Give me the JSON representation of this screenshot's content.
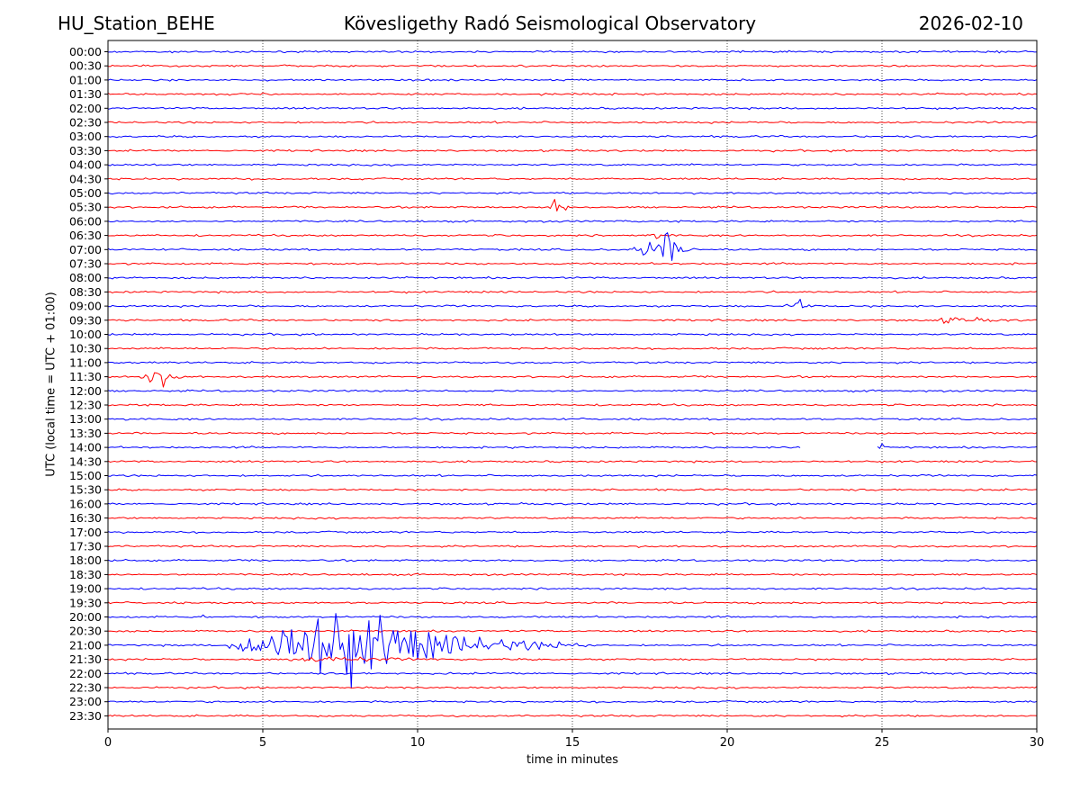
{
  "header": {
    "station": "HU_Station_BEHE",
    "observatory": "Kövesligethy Radó Seismological Observatory",
    "date": "2026-02-10"
  },
  "chart_data": {
    "type": "line",
    "title": "Kövesligethy Radó Seismological Observatory",
    "xlabel": "time in minutes",
    "ylabel": "UTC (local time = UTC + 01:00)",
    "xlim": [
      0,
      30
    ],
    "xticks": [
      0,
      5,
      10,
      15,
      20,
      25,
      30
    ],
    "x_gridlines": "dotted vertical at each x tick",
    "rows": [
      "00:00",
      "00:30",
      "01:00",
      "01:30",
      "02:00",
      "02:30",
      "03:00",
      "03:30",
      "04:00",
      "04:30",
      "05:00",
      "05:30",
      "06:00",
      "06:30",
      "07:00",
      "07:30",
      "08:00",
      "08:30",
      "09:00",
      "09:30",
      "10:00",
      "10:30",
      "11:00",
      "11:30",
      "12:00",
      "12:30",
      "13:00",
      "13:30",
      "14:00",
      "14:30",
      "15:00",
      "15:30",
      "16:00",
      "16:30",
      "17:00",
      "17:30",
      "18:00",
      "18:30",
      "19:00",
      "19:30",
      "20:00",
      "20:30",
      "21:00",
      "21:30",
      "22:00",
      "22:30",
      "23:00",
      "23:30"
    ],
    "row_colors": [
      "#0000ff",
      "#ff0000"
    ],
    "baseline_noise": 0.18,
    "events": [
      {
        "row": "05:30",
        "start": 14.2,
        "peak": 14.45,
        "end": 15.1,
        "amplitude": 1.9
      },
      {
        "row": "06:30",
        "start": 17.3,
        "peak": 17.55,
        "end": 18.4,
        "amplitude": 0.8
      },
      {
        "row": "07:00",
        "start": 16.8,
        "peak": 18.1,
        "end": 19.2,
        "amplitude": 3.2
      },
      {
        "row": "09:00",
        "start": 21.8,
        "peak": 22.35,
        "end": 23.0,
        "amplitude": 1.2
      },
      {
        "row": "09:30",
        "start": 26.5,
        "peak": 27.3,
        "end": 30.0,
        "amplitude": 0.6
      },
      {
        "row": "11:30",
        "start": 0.9,
        "peak": 1.6,
        "end": 2.6,
        "amplitude": 2.6
      },
      {
        "row": "14:00",
        "start": 24.85,
        "peak": 24.9,
        "end": 25.1,
        "amplitude": 2.1
      },
      {
        "row": "20:00",
        "start": 2.95,
        "peak": 3.05,
        "end": 3.2,
        "amplitude": 0.6
      },
      {
        "row": "21:00",
        "start": 3.7,
        "peak": 7.4,
        "end": 15.5,
        "amplitude": 9.0
      },
      {
        "row": "21:30",
        "start": 4.5,
        "peak": 7.5,
        "end": 11.5,
        "amplitude": 0.5
      }
    ],
    "gaps": [
      {
        "row": "14:00",
        "start": 22.4,
        "end": 24.85
      }
    ]
  }
}
